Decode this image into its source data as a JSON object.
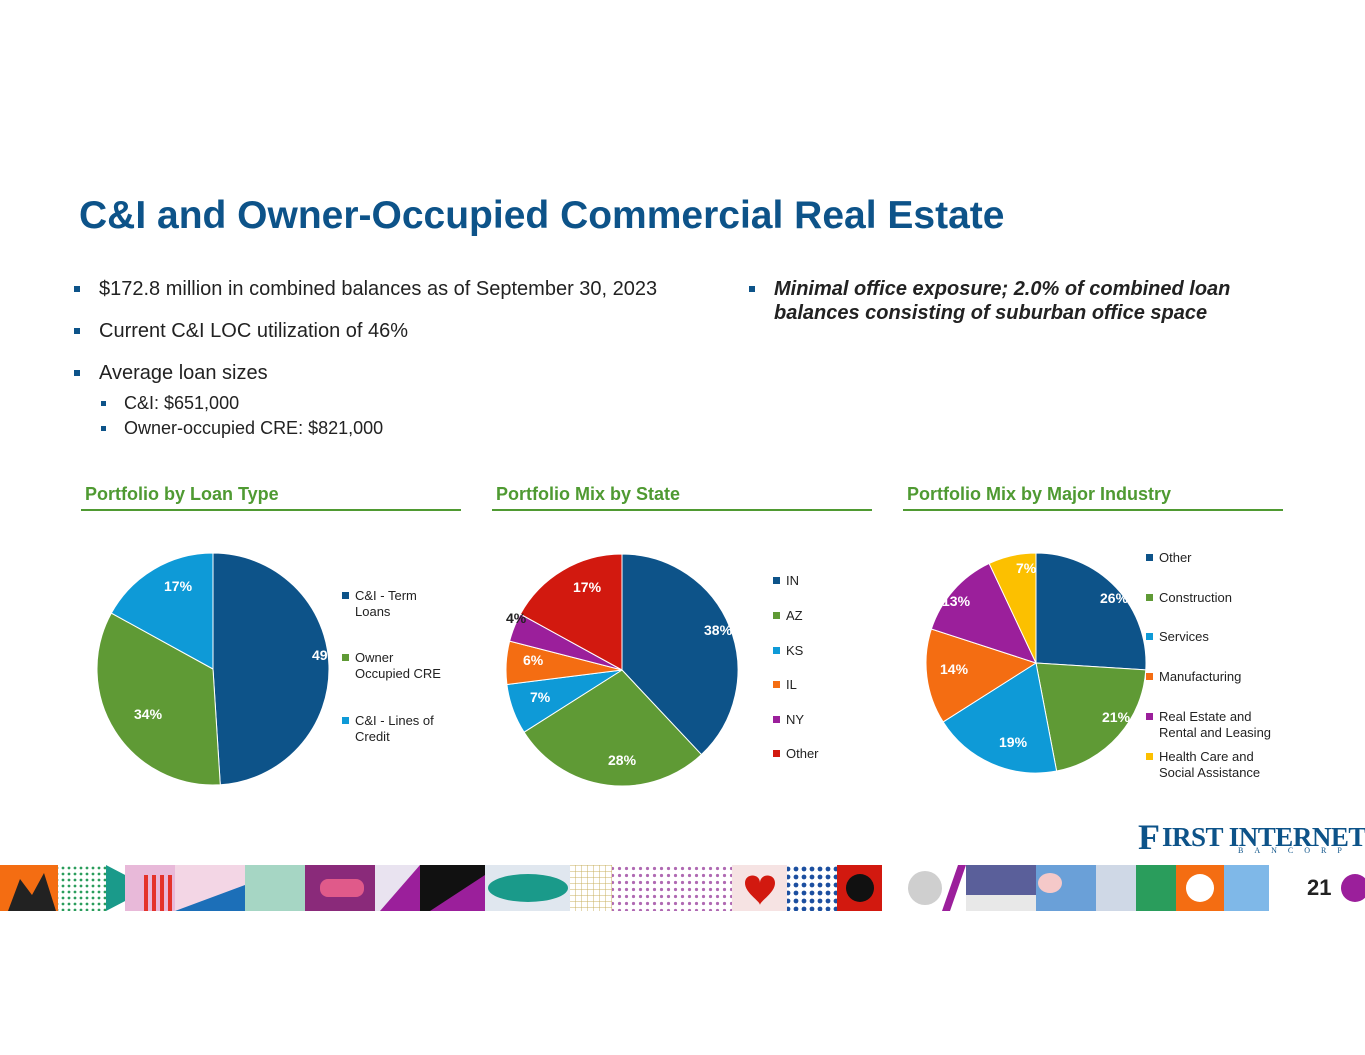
{
  "slide": {
    "title": "C&I and Owner-Occupied Commercial Real Estate",
    "page_number": "21"
  },
  "bullets_left": [
    {
      "text": "$172.8 million in combined balances as of September 30, 2023"
    },
    {
      "text": "Current C&I LOC utilization of 46%"
    },
    {
      "text": "Average loan sizes",
      "sub": [
        "C&I: $651,000",
        "Owner-occupied CRE: $821,000"
      ]
    }
  ],
  "bullets_right": [
    {
      "text": "Minimal office exposure; 2.0% of combined loan balances consisting of suburban office space"
    }
  ],
  "logo": {
    "initial": "F",
    "name": "IRST INTERNET",
    "sub": "BANCORP"
  },
  "colors": {
    "brand_blue": "#0d5389",
    "accent_green": "#4f9a32"
  },
  "chart_data": [
    {
      "type": "pie",
      "title": "Portfolio by Loan Type",
      "categories": [
        "C&I - Term Loans",
        "Owner Occupied CRE",
        "C&I - Lines of Credit"
      ],
      "values": [
        49,
        34,
        17
      ],
      "labels": [
        "49%",
        "34%",
        "17%"
      ],
      "colors": [
        "#0d5389",
        "#5f9a35",
        "#0e9ad7"
      ],
      "legend": "right"
    },
    {
      "type": "pie",
      "title": "Portfolio Mix by State",
      "categories": [
        "IN",
        "AZ",
        "KS",
        "IL",
        "NY",
        "Other"
      ],
      "values": [
        38,
        28,
        7,
        6,
        4,
        17
      ],
      "labels": [
        "38%",
        "28%",
        "7%",
        "6%",
        "4%",
        "17%"
      ],
      "colors": [
        "#0d5389",
        "#5f9a35",
        "#0e9ad7",
        "#f46d12",
        "#9b1f9b",
        "#d2190f"
      ],
      "legend": "right"
    },
    {
      "type": "pie",
      "title": "Portfolio Mix by Major Industry",
      "categories": [
        "Other",
        "Construction",
        "Services",
        "Manufacturing",
        "Real Estate and Rental and Leasing",
        "Health Care and Social Assistance"
      ],
      "values": [
        26,
        21,
        19,
        14,
        13,
        7
      ],
      "labels": [
        "26%",
        "21%",
        "19%",
        "14%",
        "13%",
        "7%"
      ],
      "colors": [
        "#0d5389",
        "#5f9a35",
        "#0e9ad7",
        "#f46d12",
        "#9b1f9b",
        "#fcc000"
      ],
      "legend": "right"
    }
  ]
}
